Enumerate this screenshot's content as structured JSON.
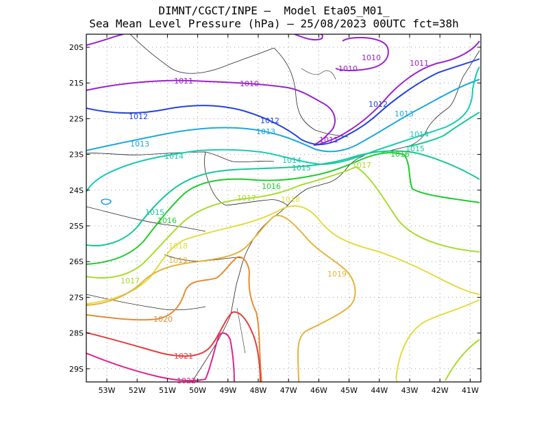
{
  "title_line1": "DIMNT/CGCT/INPE –  Model Eta05_M01_",
  "title_line2": "Sea Mean Level Pressure (hPa) – 25/08/2023 00UTC fct=38h",
  "lat_labels": [
    "20S",
    "21S",
    "22S",
    "23S",
    "24S",
    "25S",
    "26S",
    "27S",
    "28S",
    "29S"
  ],
  "lon_labels": [
    "53W",
    "52W",
    "51W",
    "50W",
    "49W",
    "48W",
    "47W",
    "46W",
    "45W",
    "44W",
    "43W",
    "42W",
    "41W"
  ],
  "chart_data": {
    "type": "contour-map",
    "variable": "Sea Mean Level Pressure (hPa)",
    "lon_range": [
      -53.7,
      -40.5
    ],
    "lat_range": [
      -29.4,
      -19.7
    ],
    "isobars": [
      {
        "value": 1010,
        "label": "1010",
        "color": "#9b1fcf"
      },
      {
        "value": 1011,
        "label": "1011",
        "color": "#9b1fcf"
      },
      {
        "value": 1012,
        "label": "1012",
        "color": "#2141e0"
      },
      {
        "value": 1013,
        "label": "1013",
        "color": "#1aa7e0"
      },
      {
        "value": 1014,
        "label": "1014",
        "color": "#18cbb0"
      },
      {
        "value": 1015,
        "label": "1015",
        "color": "#14c896"
      },
      {
        "value": 1016,
        "label": "1016",
        "color": "#1ccc2a"
      },
      {
        "value": 1017,
        "label": "1017",
        "color": "#a6dc2a"
      },
      {
        "value": 1018,
        "label": "1018",
        "color": "#e2dc3c"
      },
      {
        "value": 1019,
        "label": "1019",
        "color": "#e6b238"
      },
      {
        "value": 1020,
        "label": "1020",
        "color": "#e68a2e"
      },
      {
        "value": 1021,
        "label": "1021",
        "color": "#e63a3a"
      },
      {
        "value": 1022,
        "label": "1022",
        "color": "#e0208c"
      }
    ]
  }
}
